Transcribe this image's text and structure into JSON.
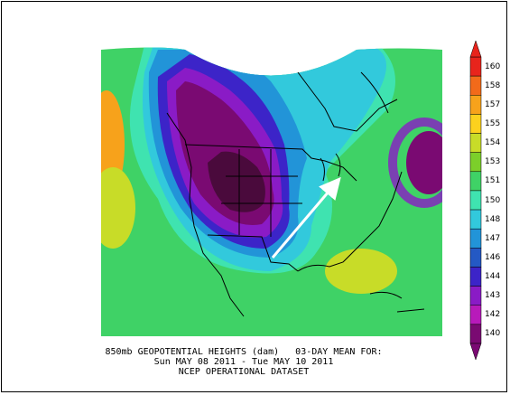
{
  "caption": {
    "line1": "850mb GEOPOTENTIAL HEIGHTS (dam)   03-DAY MEAN FOR:",
    "line2": "Sun MAY 08 2011 - Tue MAY 10 2011",
    "line3": "NCEP OPERATIONAL DATASET"
  },
  "legend": {
    "units": "dam",
    "levels": [
      {
        "label": "160",
        "color": "#e8241c"
      },
      {
        "label": "158",
        "color": "#f26a1a"
      },
      {
        "label": "157",
        "color": "#f7a21b"
      },
      {
        "label": "155",
        "color": "#fcd11e"
      },
      {
        "label": "154",
        "color": "#c8dc28"
      },
      {
        "label": "153",
        "color": "#7ccf2a"
      },
      {
        "label": "151",
        "color": "#3fd266"
      },
      {
        "label": "150",
        "color": "#3fe3b0"
      },
      {
        "label": "148",
        "color": "#32c9dc"
      },
      {
        "label": "147",
        "color": "#2294d8"
      },
      {
        "label": "146",
        "color": "#2459c4"
      },
      {
        "label": "144",
        "color": "#3c24c8"
      },
      {
        "label": "143",
        "color": "#8a1bc6"
      },
      {
        "label": "142",
        "color": "#b81aba"
      },
      {
        "label": "140",
        "color": "#7a0a72"
      }
    ]
  },
  "map": {
    "field_colors": {
      "low_core": "#4a0a3c",
      "low": "#7a0a72",
      "mid_low": "#8a1bc6",
      "blue_purple": "#3c24c8",
      "blue": "#2294d8",
      "cyan": "#32c9dc",
      "aqua": "#3fe3b0",
      "green": "#3fd266",
      "yellow_green": "#c8dc28",
      "orange": "#f7a21b"
    },
    "annotation": "arrow-northeast"
  }
}
